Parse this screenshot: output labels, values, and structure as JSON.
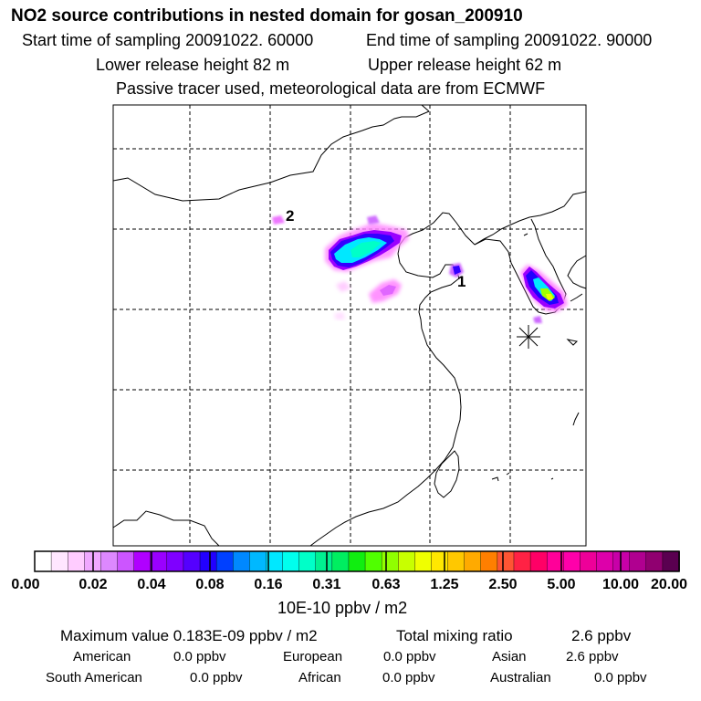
{
  "header": {
    "title": "NO2 source contributions in nested domain for gosan_200910",
    "start_label": "Start time of sampling 20091022. 60000",
    "end_label": "End time of sampling 20091022. 90000",
    "lower_label": "Lower release height   82 m",
    "upper_label": "Upper release height   62 m",
    "info": "Passive tracer used, meteorological data are from ECMWF"
  },
  "map": {
    "source_markers": [
      "1",
      "2"
    ],
    "receptor": "gosan"
  },
  "colorbar": {
    "colors": [
      "#ffffff",
      "#ffe6ff",
      "#ffccff",
      "#f0a8ff",
      "#dd88ff",
      "#cc55ff",
      "#b000ff",
      "#9a00ff",
      "#7f00ff",
      "#5500ff",
      "#2200ff",
      "#0040ff",
      "#0088ff",
      "#00b8ff",
      "#00e8ff",
      "#00ffee",
      "#00ffc8",
      "#00f090",
      "#00ee60",
      "#10ee10",
      "#50ff00",
      "#90ff00",
      "#c8ff00",
      "#f0ff00",
      "#ffe800",
      "#ffc800",
      "#ffaa00",
      "#ff7f00",
      "#ff5533",
      "#ff2244",
      "#ff0066",
      "#ff0099",
      "#ff00aa",
      "#ee0099",
      "#dd00aa",
      "#c800a8",
      "#b00090",
      "#900070",
      "#5a0050"
    ],
    "ticks": [
      "0.00",
      "0.02",
      "0.04",
      "0.08",
      "0.16",
      "0.31",
      "0.63",
      "1.25",
      "2.50",
      "5.00",
      "10.00",
      "20.00"
    ],
    "unit": "10E-10 ppbv / m2"
  },
  "footer": {
    "max_label": "Maximum value  0.183E-09 ppbv / m2",
    "total_label": "Total mixing ratio",
    "total_value": "2.6 ppbv",
    "regions": [
      {
        "name": "American",
        "value": "0.0 ppbv"
      },
      {
        "name": "European",
        "value": "0.0 ppbv"
      },
      {
        "name": "Asian",
        "value": "2.6 ppbv"
      },
      {
        "name": "South American",
        "value": "0.0 ppbv"
      },
      {
        "name": "African",
        "value": "0.0 ppbv"
      },
      {
        "name": "Australian",
        "value": "0.0 ppbv"
      }
    ]
  }
}
